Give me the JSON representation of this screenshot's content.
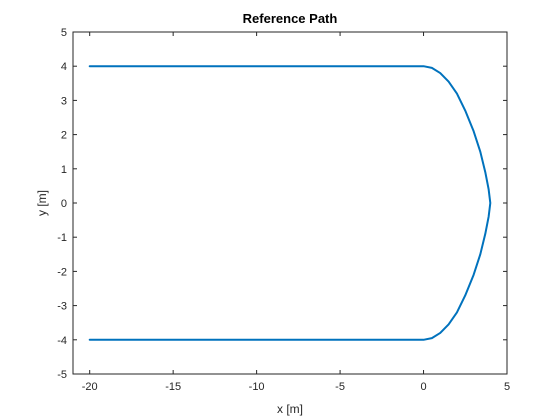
{
  "chart_data": {
    "type": "line",
    "title": "Reference Path",
    "xlabel": "x [m]",
    "ylabel": "y [m]",
    "xlim": [
      -21,
      5
    ],
    "ylim": [
      -5,
      5
    ],
    "xticks": [
      -20,
      -15,
      -10,
      -5,
      0,
      5
    ],
    "yticks": [
      -5,
      -4,
      -3,
      -2,
      -1,
      0,
      1,
      2,
      3,
      4,
      5
    ],
    "grid": false,
    "legend": "none",
    "series": [
      {
        "color": "#0072BD",
        "x": [
          -20,
          0,
          0.5,
          1.0,
          1.5,
          2.0,
          2.5,
          3.0,
          3.4,
          3.7,
          3.9,
          4.0,
          3.9,
          3.7,
          3.4,
          3.0,
          2.5,
          2.0,
          1.5,
          1.0,
          0.5,
          0,
          -20
        ],
        "y": [
          4,
          4,
          3.95,
          3.8,
          3.55,
          3.2,
          2.7,
          2.1,
          1.5,
          0.9,
          0.4,
          0,
          -0.4,
          -0.9,
          -1.5,
          -2.1,
          -2.7,
          -3.2,
          -3.55,
          -3.8,
          -3.95,
          -4,
          -4
        ]
      }
    ]
  }
}
